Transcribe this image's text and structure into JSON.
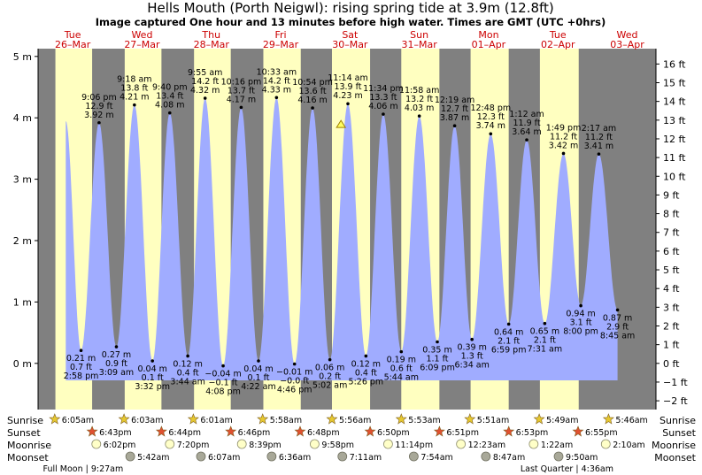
{
  "title": "Hells Mouth (Porth Neigwl): rising  spring tide at 3.9m (12.8ft)",
  "subtitle": "Image captured One hour and 13 minutes before high water. Times are GMT (UTC +0hrs)",
  "chart_data": {
    "type": "area",
    "y_left": {
      "unit": "m",
      "ticks": [
        "0 m",
        "1 m",
        "2 m",
        "3 m",
        "4 m",
        "5 m"
      ],
      "range": [
        -0.5,
        5.2
      ]
    },
    "y_right": {
      "unit": "ft",
      "ticks": [
        "−2 ft",
        "−1 ft",
        "0 ft",
        "1 ft",
        "2 ft",
        "3 ft",
        "4 ft",
        "5 ft",
        "6 ft",
        "7 ft",
        "8 ft",
        "9 ft",
        "10 ft",
        "11 ft",
        "12 ft",
        "13 ft",
        "14 ft",
        "15 ft",
        "16 ft"
      ]
    },
    "days": [
      {
        "dow": "Tue",
        "date": "26–Mar"
      },
      {
        "dow": "Wed",
        "date": "27–Mar"
      },
      {
        "dow": "Thu",
        "date": "28–Mar"
      },
      {
        "dow": "Fri",
        "date": "29–Mar"
      },
      {
        "dow": "Sat",
        "date": "30–Mar"
      },
      {
        "dow": "Sun",
        "date": "31–Mar"
      },
      {
        "dow": "Mon",
        "date": "01–Apr"
      },
      {
        "dow": "Tue",
        "date": "02–Apr"
      },
      {
        "dow": "Wed",
        "date": "03–Apr"
      }
    ],
    "highs": [
      {
        "t": 1.88,
        "m": 3.92,
        "lines": [
          "9:06 pm",
          "12.9 ft",
          "3.92 m"
        ]
      },
      {
        "t": 2.39,
        "m": 4.21,
        "lines": [
          "9:18 am",
          "13.8 ft",
          "4.21 m"
        ]
      },
      {
        "t": 2.9,
        "m": 4.08,
        "lines": [
          "9:40 pm",
          "13.4 ft",
          "4.08 m"
        ]
      },
      {
        "t": 3.41,
        "m": 4.32,
        "lines": [
          "9:55 am",
          "14.2 ft",
          "4.32 m"
        ]
      },
      {
        "t": 3.93,
        "m": 4.17,
        "lines": [
          "10:16 pm",
          "13.7 ft",
          "4.17 m"
        ]
      },
      {
        "t": 4.44,
        "m": 4.33,
        "lines": [
          "10:33 am",
          "14.2 ft",
          "4.33 m"
        ]
      },
      {
        "t": 4.96,
        "m": 4.16,
        "lines": [
          "10:54 pm",
          "13.6 ft",
          "4.16 m"
        ]
      },
      {
        "t": 5.47,
        "m": 4.23,
        "lines": [
          "11:14 am",
          "13.9 ft",
          "4.23 m"
        ]
      },
      {
        "t": 5.98,
        "m": 4.06,
        "lines": [
          "11:34 pm",
          "13.3 ft",
          "4.06 m"
        ]
      },
      {
        "t": 6.5,
        "m": 4.03,
        "lines": [
          "11:58 am",
          "13.2 ft",
          "4.03 m"
        ]
      },
      {
        "t": 7.01,
        "m": 3.87,
        "lines": [
          "12:19 am",
          "12.7 ft",
          "3.87 m"
        ]
      },
      {
        "t": 7.53,
        "m": 3.74,
        "lines": [
          "12:48 pm",
          "12.3 ft",
          "3.74 m"
        ]
      },
      {
        "t": 8.05,
        "m": 3.64,
        "lines": [
          "1:12 am",
          "11.9 ft",
          "3.64 m"
        ]
      },
      {
        "t": 8.58,
        "m": 3.42,
        "lines": [
          "1:49 pm",
          "11.2 ft",
          "3.42 m"
        ]
      },
      {
        "t": 9.09,
        "m": 3.41,
        "lines": [
          "2:17 am",
          "11.2 ft",
          "3.41 m"
        ]
      }
    ],
    "lows": [
      {
        "t": 1.62,
        "m": 0.21,
        "lines": [
          "0.21 m",
          "0.7 ft",
          "2:58 pm"
        ]
      },
      {
        "t": 2.13,
        "m": 0.27,
        "lines": [
          "0.27 m",
          "0.9 ft",
          "3:09 am"
        ]
      },
      {
        "t": 2.65,
        "m": 0.04,
        "lines": [
          "0.04 m",
          "0.1 ft",
          "3:32 pm"
        ]
      },
      {
        "t": 3.16,
        "m": 0.12,
        "lines": [
          "0.12 m",
          "0.4 ft",
          "3:44 am"
        ]
      },
      {
        "t": 3.67,
        "m": -0.04,
        "lines": [
          "−0.04 m",
          "−0.1 ft",
          "4:08 pm"
        ]
      },
      {
        "t": 4.18,
        "m": 0.04,
        "lines": [
          "0.04 m",
          "0.1 ft",
          "4:22 am"
        ]
      },
      {
        "t": 4.7,
        "m": -0.01,
        "lines": [
          "−0.01 m",
          "−0.0 ft",
          "4:46 pm"
        ]
      },
      {
        "t": 5.21,
        "m": 0.06,
        "lines": [
          "0.06 m",
          "0.2 ft",
          "5:02 am"
        ]
      },
      {
        "t": 5.73,
        "m": 0.12,
        "lines": [
          "0.12 m",
          "0.4 ft",
          "5:26 pm"
        ]
      },
      {
        "t": 6.24,
        "m": 0.19,
        "lines": [
          "0.19 m",
          "0.6 ft",
          "5:44 am"
        ]
      },
      {
        "t": 6.76,
        "m": 0.35,
        "lines": [
          "0.35 m",
          "1.1 ft",
          "6:09 pm"
        ]
      },
      {
        "t": 7.26,
        "m": 0.39,
        "lines": [
          "0.39 m",
          "1.3 ft",
          "6:34 am"
        ]
      },
      {
        "t": 7.79,
        "m": 0.64,
        "lines": [
          "0.64 m",
          "2.1 ft",
          "6:59 pm"
        ]
      },
      {
        "t": 8.31,
        "m": 0.65,
        "lines": [
          "0.65 m",
          "2.1 ft",
          "7:31 am"
        ]
      },
      {
        "t": 8.83,
        "m": 0.94,
        "lines": [
          "0.94 m",
          "3.1 ft",
          "8:00 pm"
        ]
      },
      {
        "t": 9.36,
        "m": 0.87,
        "lines": [
          "0.87 m",
          "2.9 ft",
          "8:45 am"
        ]
      }
    ],
    "start": {
      "t": 1.4,
      "m": 3.95
    },
    "current": {
      "t": 5.37,
      "m": 3.9
    },
    "daylight": [
      [
        1.25,
        1.78
      ],
      [
        2.25,
        2.78
      ],
      [
        3.25,
        3.78
      ],
      [
        4.25,
        4.79
      ],
      [
        5.24,
        5.79
      ],
      [
        6.24,
        6.79
      ],
      [
        7.24,
        7.79
      ],
      [
        8.24,
        8.8
      ]
    ]
  },
  "astro": {
    "labels": {
      "sunrise": "Sunrise",
      "sunset": "Sunset",
      "moonrise": "Moonrise",
      "moonset": "Moonset"
    },
    "sunrise": [
      {
        "t": 1.24,
        "time": "6:05am"
      },
      {
        "t": 2.24,
        "time": "6:03am"
      },
      {
        "t": 3.24,
        "time": "6:01am"
      },
      {
        "t": 4.24,
        "time": "5:58am"
      },
      {
        "t": 5.24,
        "time": "5:56am"
      },
      {
        "t": 6.24,
        "time": "5:53am"
      },
      {
        "t": 7.23,
        "time": "5:51am"
      },
      {
        "t": 8.23,
        "time": "5:49am"
      },
      {
        "t": 9.23,
        "time": "5:46am"
      }
    ],
    "sunset": [
      {
        "t": 1.78,
        "time": "6:43pm"
      },
      {
        "t": 2.78,
        "time": "6:44pm"
      },
      {
        "t": 3.78,
        "time": "6:46pm"
      },
      {
        "t": 4.78,
        "time": "6:48pm"
      },
      {
        "t": 5.79,
        "time": "6:50pm"
      },
      {
        "t": 6.79,
        "time": "6:51pm"
      },
      {
        "t": 7.79,
        "time": "6:53pm"
      },
      {
        "t": 8.79,
        "time": "6:55pm"
      }
    ],
    "moonrise": [
      {
        "t": 1.84,
        "time": "6:02pm"
      },
      {
        "t": 2.9,
        "time": "7:20pm"
      },
      {
        "t": 3.94,
        "time": "8:39pm"
      },
      {
        "t": 4.99,
        "time": "9:58pm"
      },
      {
        "t": 6.05,
        "time": "11:14pm"
      },
      {
        "t": 7.1,
        "time": "12:23am"
      },
      {
        "t": 8.15,
        "time": "1:22am"
      },
      {
        "t": 9.19,
        "time": "2:10am"
      }
    ],
    "moonset": [
      {
        "t": 2.33,
        "time": "5:42am"
      },
      {
        "t": 3.35,
        "time": "6:07am"
      },
      {
        "t": 4.37,
        "time": "6:36am"
      },
      {
        "t": 5.39,
        "time": "7:11am"
      },
      {
        "t": 6.42,
        "time": "7:54am"
      },
      {
        "t": 7.46,
        "time": "8:47am"
      },
      {
        "t": 8.51,
        "time": "9:50am"
      }
    ],
    "phases": [
      {
        "t": 1.65,
        "label": "Full Moon | 9:27am"
      },
      {
        "t": 8.63,
        "label": "Last Quarter | 4:36am"
      }
    ]
  },
  "colors": {
    "night": "#808080",
    "day": "#ffffc0",
    "water": "#a0acff",
    "sun": "#e6c830",
    "sunset": "#e05030",
    "moon": "#ffffc8",
    "moonset": "#a8a898",
    "daylabel": "#cc0000"
  }
}
